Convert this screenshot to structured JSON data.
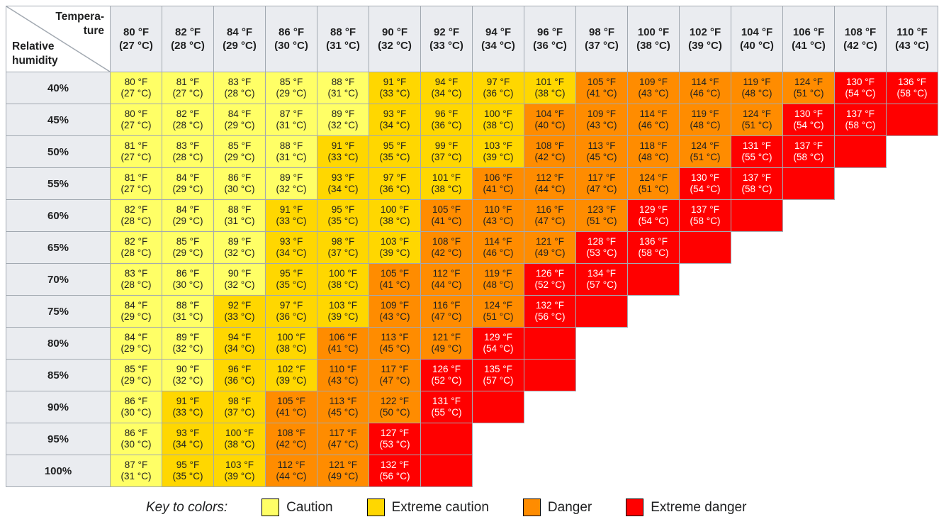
{
  "chart_data": {
    "type": "heatmap",
    "x_axis": {
      "label": "Tempera-\nture",
      "unit_f": "°F",
      "unit_c": "°C",
      "values_f": [
        80,
        82,
        84,
        86,
        88,
        90,
        92,
        94,
        96,
        98,
        100,
        102,
        104,
        106,
        108,
        110
      ],
      "values_c": [
        27,
        28,
        29,
        30,
        31,
        32,
        33,
        34,
        36,
        37,
        38,
        39,
        40,
        41,
        42,
        43
      ]
    },
    "y_axis": {
      "label": "Relative\nhumidity",
      "values": [
        "40%",
        "45%",
        "50%",
        "55%",
        "60%",
        "65%",
        "70%",
        "75%",
        "80%",
        "85%",
        "90%",
        "95%",
        "100%"
      ]
    },
    "colors": {
      "c": "#FFFF66",
      "ec": "#FFD700",
      "d": "#FF8C00",
      "ed": "#FF0000"
    },
    "rows": [
      {
        "rh": "40%",
        "trailing_empty": false,
        "cells": [
          [
            80,
            27,
            "c"
          ],
          [
            81,
            27,
            "c"
          ],
          [
            83,
            28,
            "c"
          ],
          [
            85,
            29,
            "c"
          ],
          [
            88,
            31,
            "c"
          ],
          [
            91,
            33,
            "ec"
          ],
          [
            94,
            34,
            "ec"
          ],
          [
            97,
            36,
            "ec"
          ],
          [
            101,
            38,
            "ec"
          ],
          [
            105,
            41,
            "d"
          ],
          [
            109,
            43,
            "d"
          ],
          [
            114,
            46,
            "d"
          ],
          [
            119,
            48,
            "d"
          ],
          [
            124,
            51,
            "d"
          ],
          [
            130,
            54,
            "ed"
          ],
          [
            136,
            58,
            "ed"
          ]
        ]
      },
      {
        "rh": "45%",
        "trailing_empty": true,
        "cells": [
          [
            80,
            27,
            "c"
          ],
          [
            82,
            28,
            "c"
          ],
          [
            84,
            29,
            "c"
          ],
          [
            87,
            31,
            "c"
          ],
          [
            89,
            32,
            "c"
          ],
          [
            93,
            34,
            "ec"
          ],
          [
            96,
            36,
            "ec"
          ],
          [
            100,
            38,
            "ec"
          ],
          [
            104,
            40,
            "d"
          ],
          [
            109,
            43,
            "d"
          ],
          [
            114,
            46,
            "d"
          ],
          [
            119,
            48,
            "d"
          ],
          [
            124,
            51,
            "d"
          ],
          [
            130,
            54,
            "ed"
          ],
          [
            137,
            58,
            "ed"
          ]
        ]
      },
      {
        "rh": "50%",
        "trailing_empty": true,
        "cells": [
          [
            81,
            27,
            "c"
          ],
          [
            83,
            28,
            "c"
          ],
          [
            85,
            29,
            "c"
          ],
          [
            88,
            31,
            "c"
          ],
          [
            91,
            33,
            "ec"
          ],
          [
            95,
            35,
            "ec"
          ],
          [
            99,
            37,
            "ec"
          ],
          [
            103,
            39,
            "ec"
          ],
          [
            108,
            42,
            "d"
          ],
          [
            113,
            45,
            "d"
          ],
          [
            118,
            48,
            "d"
          ],
          [
            124,
            51,
            "d"
          ],
          [
            131,
            55,
            "ed"
          ],
          [
            137,
            58,
            "ed"
          ]
        ]
      },
      {
        "rh": "55%",
        "trailing_empty": true,
        "cells": [
          [
            81,
            27,
            "c"
          ],
          [
            84,
            29,
            "c"
          ],
          [
            86,
            30,
            "c"
          ],
          [
            89,
            32,
            "c"
          ],
          [
            93,
            34,
            "ec"
          ],
          [
            97,
            36,
            "ec"
          ],
          [
            101,
            38,
            "ec"
          ],
          [
            106,
            41,
            "d"
          ],
          [
            112,
            44,
            "d"
          ],
          [
            117,
            47,
            "d"
          ],
          [
            124,
            51,
            "d"
          ],
          [
            130,
            54,
            "ed"
          ],
          [
            137,
            58,
            "ed"
          ]
        ]
      },
      {
        "rh": "60%",
        "trailing_empty": true,
        "cells": [
          [
            82,
            28,
            "c"
          ],
          [
            84,
            29,
            "c"
          ],
          [
            88,
            31,
            "c"
          ],
          [
            91,
            33,
            "ec"
          ],
          [
            95,
            35,
            "ec"
          ],
          [
            100,
            38,
            "ec"
          ],
          [
            105,
            41,
            "d"
          ],
          [
            110,
            43,
            "d"
          ],
          [
            116,
            47,
            "d"
          ],
          [
            123,
            51,
            "d"
          ],
          [
            129,
            54,
            "ed"
          ],
          [
            137,
            58,
            "ed"
          ]
        ]
      },
      {
        "rh": "65%",
        "trailing_empty": true,
        "cells": [
          [
            82,
            28,
            "c"
          ],
          [
            85,
            29,
            "c"
          ],
          [
            89,
            32,
            "c"
          ],
          [
            93,
            34,
            "ec"
          ],
          [
            98,
            37,
            "ec"
          ],
          [
            103,
            39,
            "ec"
          ],
          [
            108,
            42,
            "d"
          ],
          [
            114,
            46,
            "d"
          ],
          [
            121,
            49,
            "d"
          ],
          [
            128,
            53,
            "ed"
          ],
          [
            136,
            58,
            "ed"
          ]
        ]
      },
      {
        "rh": "70%",
        "trailing_empty": true,
        "cells": [
          [
            83,
            28,
            "c"
          ],
          [
            86,
            30,
            "c"
          ],
          [
            90,
            32,
            "c"
          ],
          [
            95,
            35,
            "ec"
          ],
          [
            100,
            38,
            "ec"
          ],
          [
            105,
            41,
            "d"
          ],
          [
            112,
            44,
            "d"
          ],
          [
            119,
            48,
            "d"
          ],
          [
            126,
            52,
            "ed"
          ],
          [
            134,
            57,
            "ed"
          ]
        ]
      },
      {
        "rh": "75%",
        "trailing_empty": true,
        "cells": [
          [
            84,
            29,
            "c"
          ],
          [
            88,
            31,
            "c"
          ],
          [
            92,
            33,
            "ec"
          ],
          [
            97,
            36,
            "ec"
          ],
          [
            103,
            39,
            "ec"
          ],
          [
            109,
            43,
            "d"
          ],
          [
            116,
            47,
            "d"
          ],
          [
            124,
            51,
            "d"
          ],
          [
            132,
            56,
            "ed"
          ]
        ]
      },
      {
        "rh": "80%",
        "trailing_empty": true,
        "cells": [
          [
            84,
            29,
            "c"
          ],
          [
            89,
            32,
            "c"
          ],
          [
            94,
            34,
            "ec"
          ],
          [
            100,
            38,
            "ec"
          ],
          [
            106,
            41,
            "d"
          ],
          [
            113,
            45,
            "d"
          ],
          [
            121,
            49,
            "d"
          ],
          [
            129,
            54,
            "ed"
          ]
        ]
      },
      {
        "rh": "85%",
        "trailing_empty": true,
        "cells": [
          [
            85,
            29,
            "c"
          ],
          [
            90,
            32,
            "c"
          ],
          [
            96,
            36,
            "ec"
          ],
          [
            102,
            39,
            "ec"
          ],
          [
            110,
            43,
            "d"
          ],
          [
            117,
            47,
            "d"
          ],
          [
            126,
            52,
            "ed"
          ],
          [
            135,
            57,
            "ed"
          ]
        ]
      },
      {
        "rh": "90%",
        "trailing_empty": true,
        "cells": [
          [
            86,
            30,
            "c"
          ],
          [
            91,
            33,
            "ec"
          ],
          [
            98,
            37,
            "ec"
          ],
          [
            105,
            41,
            "d"
          ],
          [
            113,
            45,
            "d"
          ],
          [
            122,
            50,
            "d"
          ],
          [
            131,
            55,
            "ed"
          ]
        ]
      },
      {
        "rh": "95%",
        "trailing_empty": true,
        "cells": [
          [
            86,
            30,
            "c"
          ],
          [
            93,
            34,
            "ec"
          ],
          [
            100,
            38,
            "ec"
          ],
          [
            108,
            42,
            "d"
          ],
          [
            117,
            47,
            "d"
          ],
          [
            127,
            53,
            "ed"
          ]
        ]
      },
      {
        "rh": "100%",
        "trailing_empty": true,
        "cells": [
          [
            87,
            31,
            "c"
          ],
          [
            95,
            35,
            "ec"
          ],
          [
            103,
            39,
            "ec"
          ],
          [
            112,
            44,
            "d"
          ],
          [
            121,
            49,
            "d"
          ],
          [
            132,
            56,
            "ed"
          ]
        ]
      }
    ],
    "legend": {
      "key_label": "Key to colors:",
      "items": [
        {
          "code": "c",
          "label": "Caution"
        },
        {
          "code": "ec",
          "label": "Extreme caution"
        },
        {
          "code": "d",
          "label": "Danger"
        },
        {
          "code": "ed",
          "label": "Extreme danger"
        }
      ]
    }
  }
}
